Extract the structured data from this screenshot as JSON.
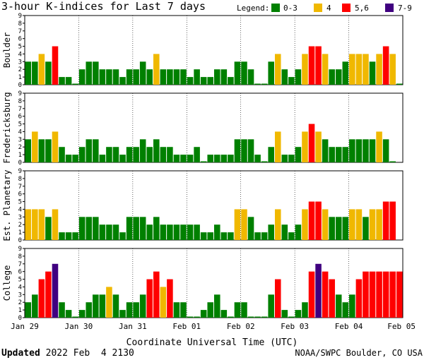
{
  "chart_data": {
    "type": "bar",
    "title": "3-hour K-indices for Last 7 days",
    "legend": {
      "title": "Legend:",
      "entries": [
        {
          "label": "0-3",
          "color": "#008000"
        },
        {
          "label": "4",
          "color": "#f0b800"
        },
        {
          "label": "5,6",
          "color": "#ff0000"
        },
        {
          "label": "7-9",
          "color": "#400080"
        }
      ]
    },
    "ylim": [
      0,
      9
    ],
    "yticks": [
      0,
      1,
      2,
      3,
      4,
      5,
      6,
      7,
      8,
      9
    ],
    "xlabel": "Coordinate Universal Time (UTC)",
    "xtick_labels": [
      "Jan 29",
      "Jan 30",
      "Jan 31",
      "Feb 01",
      "Feb 02",
      "Feb 03",
      "Feb 04",
      "Feb 05"
    ],
    "intervals_per_day": 8,
    "panels": [
      {
        "name": "Boulder",
        "values": [
          3,
          3,
          4,
          3,
          5,
          1,
          1,
          0,
          2,
          3,
          3,
          2,
          2,
          2,
          1,
          2,
          2,
          3,
          2,
          4,
          2,
          2,
          2,
          2,
          1,
          2,
          1,
          1,
          2,
          2,
          1,
          3,
          3,
          2,
          0,
          0,
          3,
          4,
          2,
          1,
          2,
          4,
          5,
          5,
          4,
          2,
          2,
          3,
          4,
          4,
          4,
          3,
          4,
          5,
          4,
          0
        ]
      },
      {
        "name": "Fredericksburg",
        "values": [
          3,
          4,
          3,
          3,
          4,
          2,
          1,
          1,
          2,
          3,
          3,
          1,
          2,
          2,
          1,
          2,
          2,
          3,
          2,
          3,
          2,
          2,
          1,
          1,
          1,
          2,
          0,
          1,
          1,
          1,
          1,
          3,
          3,
          3,
          1,
          0,
          2,
          4,
          1,
          1,
          2,
          4,
          5,
          4,
          3,
          2,
          2,
          2,
          3,
          3,
          3,
          3,
          4,
          3,
          0
        ]
      },
      {
        "name": "Est. Planetary",
        "values": [
          4,
          4,
          4,
          3,
          4,
          1,
          1,
          1,
          3,
          3,
          3,
          2,
          2,
          2,
          1,
          3,
          3,
          3,
          2,
          3,
          2,
          2,
          2,
          2,
          2,
          2,
          1,
          1,
          2,
          1,
          1,
          4,
          4,
          3,
          1,
          1,
          2,
          4,
          2,
          1,
          2,
          4,
          5,
          5,
          4,
          3,
          3,
          3,
          4,
          4,
          3,
          4,
          4,
          5,
          5
        ]
      },
      {
        "name": "College",
        "values": [
          2,
          3,
          5,
          6,
          7,
          2,
          1,
          0,
          1,
          2,
          3,
          3,
          4,
          3,
          1,
          2,
          2,
          3,
          5,
          6,
          4,
          5,
          2,
          2,
          0,
          0,
          1,
          2,
          3,
          1,
          0,
          2,
          2,
          0,
          0,
          0,
          3,
          5,
          1,
          0,
          1,
          2,
          6,
          7,
          6,
          5,
          3,
          2,
          3,
          5,
          6,
          6,
          6,
          6,
          6,
          6
        ]
      }
    ]
  },
  "footer": {
    "updated_label": "Updated",
    "updated_time": " 2022 Feb  4 2130",
    "credit": "NOAA/SWPC Boulder, CO USA"
  }
}
